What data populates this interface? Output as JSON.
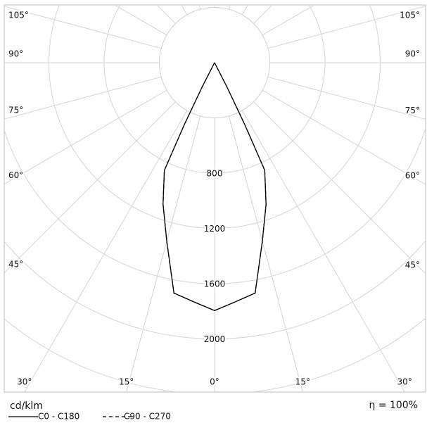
{
  "chart_data": {
    "type": "polar",
    "unit_label": "cd/klm",
    "efficiency": "η = 100%",
    "rlim": [
      0,
      2400
    ],
    "rticks": [
      800,
      1200,
      1600,
      2000
    ],
    "rgrid": [
      400,
      2400
    ],
    "angle_ticks": [
      {
        "value": 0,
        "label": "0°"
      },
      {
        "value": 15,
        "label": "15°"
      },
      {
        "value": 30,
        "label": "30°"
      },
      {
        "value": 45,
        "label": "45°"
      },
      {
        "value": 60,
        "label": "60°"
      },
      {
        "value": 75,
        "label": "75°"
      },
      {
        "value": 90,
        "label": "90°"
      },
      {
        "value": 105,
        "label": "105°"
      }
    ],
    "angle_grid": [
      120,
      135,
      150,
      165,
      180
    ],
    "x": [
      -30,
      -28,
      -27,
      -26,
      -25,
      -20,
      -15,
      -10,
      -5,
      0,
      5,
      10,
      15,
      20,
      25,
      26,
      27,
      28,
      30
    ],
    "series": [
      {
        "name": "C0 - C180",
        "color": "#000000",
        "dash": false,
        "values": [
          0,
          0,
          200,
          500,
          860,
          1091,
          1338,
          1694,
          1738,
          1795,
          1738,
          1694,
          1338,
          1091,
          860,
          500,
          200,
          0,
          0
        ]
      },
      {
        "name": "C90 - C270",
        "color": "#000000",
        "dash": true,
        "values": [
          0,
          0,
          200,
          500,
          860,
          1091,
          1338,
          1694,
          1738,
          1795,
          1738,
          1694,
          1338,
          1091,
          860,
          500,
          200,
          0,
          0
        ]
      }
    ]
  }
}
